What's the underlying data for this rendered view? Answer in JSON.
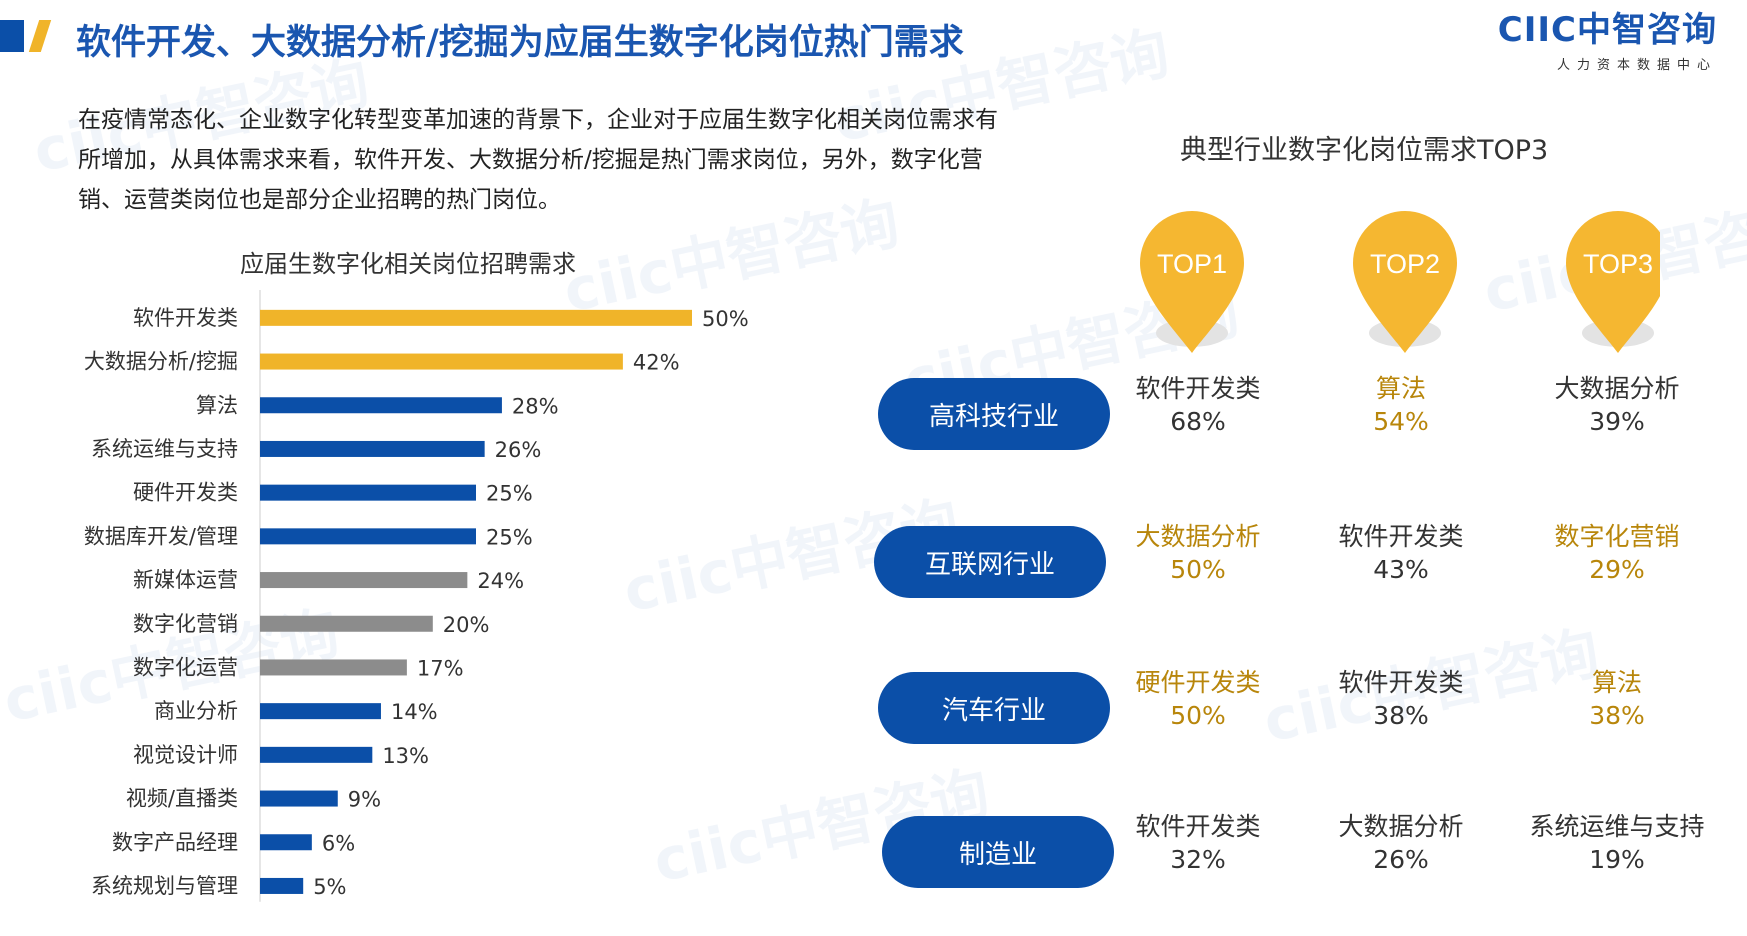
{
  "header": {
    "title": "软件开发、大数据分析/挖掘为应届生数字化岗位热门需求",
    "logo_brand": "CIIC中智咨询",
    "logo_sub": "人力资本数据中心",
    "accent_blue": "#0b4fa8",
    "accent_gold": "#f0b429"
  },
  "intro": "在疫情常态化、企业数字化转型变革加速的背景下，企业对于应届生数字化相关岗位需求有所增加，从具体需求来看，软件开发、大数据分析/挖掘是热门需求岗位，另外，数字化营销、运营类岗位也是部分企业招聘的热门岗位。",
  "chart_data": {
    "type": "bar",
    "orientation": "horizontal",
    "title": "应届生数字化相关岗位招聘需求",
    "categories": [
      "软件开发类",
      "大数据分析/挖掘",
      "算法",
      "系统运维与支持",
      "硬件开发类",
      "数据库开发/管理",
      "新媒体运营",
      "数字化营销",
      "数字化运营",
      "商业分析",
      "视觉设计师",
      "视频/直播类",
      "数字产品经理",
      "系统规划与管理"
    ],
    "values": [
      50,
      42,
      28,
      26,
      25,
      25,
      24,
      20,
      17,
      14,
      13,
      9,
      6,
      5
    ],
    "value_suffix": "%",
    "colors": [
      "#f0b429",
      "#f0b429",
      "#0b4fa8",
      "#0b4fa8",
      "#0b4fa8",
      "#0b4fa8",
      "#8c8c8c",
      "#8c8c8c",
      "#8c8c8c",
      "#0b4fa8",
      "#0b4fa8",
      "#0b4fa8",
      "#0b4fa8",
      "#0b4fa8"
    ],
    "xlim": [
      0,
      50
    ]
  },
  "top3": {
    "title": "典型行业数字化岗位需求TOP3",
    "ranks": [
      "TOP1",
      "TOP2",
      "TOP3"
    ],
    "pin_color": "#f5b731",
    "rows": [
      {
        "industry": "高科技行业",
        "cells": [
          {
            "job": "软件开发类",
            "pct": "68%",
            "tone": "dark"
          },
          {
            "job": "算法",
            "pct": "54%",
            "tone": "gold"
          },
          {
            "job": "大数据分析",
            "pct": "39%",
            "tone": "dark"
          }
        ]
      },
      {
        "industry": "互联网行业",
        "cells": [
          {
            "job": "大数据分析",
            "pct": "50%",
            "tone": "gold"
          },
          {
            "job": "软件开发类",
            "pct": "43%",
            "tone": "dark"
          },
          {
            "job": "数字化营销",
            "pct": "29%",
            "tone": "gold"
          }
        ]
      },
      {
        "industry": "汽车行业",
        "cells": [
          {
            "job": "硬件开发类",
            "pct": "50%",
            "tone": "gold"
          },
          {
            "job": "软件开发类",
            "pct": "38%",
            "tone": "dark"
          },
          {
            "job": "算法",
            "pct": "38%",
            "tone": "gold"
          }
        ]
      },
      {
        "industry": "制造业",
        "cells": [
          {
            "job": "软件开发类",
            "pct": "32%",
            "tone": "dark"
          },
          {
            "job": "大数据分析",
            "pct": "26%",
            "tone": "dark"
          },
          {
            "job": "系统运维与支持",
            "pct": "19%",
            "tone": "dark"
          }
        ]
      }
    ]
  }
}
